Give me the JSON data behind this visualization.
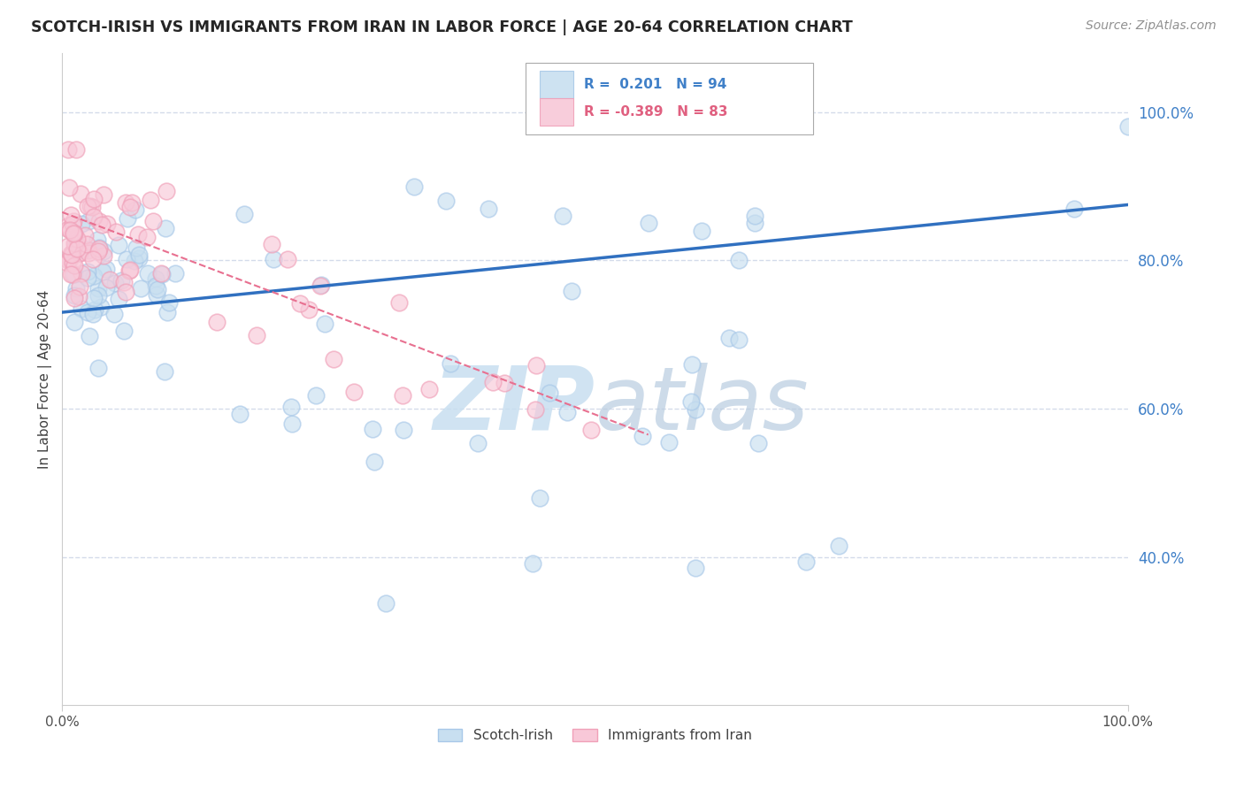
{
  "title": "SCOTCH-IRISH VS IMMIGRANTS FROM IRAN IN LABOR FORCE | AGE 20-64 CORRELATION CHART",
  "source": "Source: ZipAtlas.com",
  "ylabel": "In Labor Force | Age 20-64",
  "legend1_label": "Scotch-Irish",
  "legend2_label": "Immigrants from Iran",
  "r1": 0.201,
  "n1": 94,
  "r2": -0.389,
  "n2": 83,
  "xlim": [
    0,
    1
  ],
  "ylim": [
    0.2,
    1.08
  ],
  "yticks": [
    0.4,
    0.6,
    0.8,
    1.0
  ],
  "ytick_labels": [
    "40.0%",
    "60.0%",
    "80.0%",
    "100.0%"
  ],
  "color_blue": "#a8c8e8",
  "color_blue_fill": "#c8dff0",
  "color_pink": "#f0a0b8",
  "color_pink_fill": "#f8c8d8",
  "color_blue_line": "#3070c0",
  "color_pink_line": "#e87090",
  "color_blue_text": "#4080c8",
  "color_pink_text": "#e06080",
  "watermark_color": "#c8dff0",
  "grid_color": "#d0d8e8",
  "background_color": "#ffffff",
  "blue_trend_start": 0.73,
  "blue_trend_end": 0.875,
  "pink_trend_start": 0.865,
  "pink_trend_end_x": 0.55,
  "pink_trend_end_y": 0.565
}
